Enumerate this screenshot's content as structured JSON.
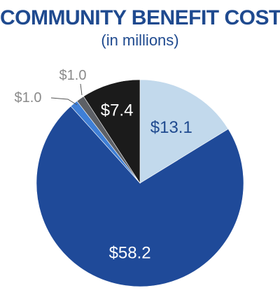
{
  "chart_data": {
    "type": "pie",
    "title": "COMMUNITY BENEFIT COST",
    "subtitle": "(in millions)",
    "slices": [
      {
        "label": "$13.1",
        "value": 13.1,
        "color": "#c2d9ec",
        "label_color": "#1f4a8f",
        "label_position": "inside"
      },
      {
        "label": "$58.2",
        "value": 58.2,
        "color": "#1f4a99",
        "label_color": "#ffffff",
        "label_position": "inside"
      },
      {
        "label": "$1.0",
        "value": 1.0,
        "color": "#3f7fd6",
        "label_color": "#8a8a8a",
        "label_position": "outside"
      },
      {
        "label": "$1.0",
        "value": 1.0,
        "color": "#5d6066",
        "label_color": "#8a8a8a",
        "label_position": "outside"
      },
      {
        "label": "$7.4",
        "value": 7.4,
        "color": "#1b1b1b",
        "label_color": "#ffffff",
        "label_position": "inside"
      }
    ],
    "legend": "none"
  }
}
